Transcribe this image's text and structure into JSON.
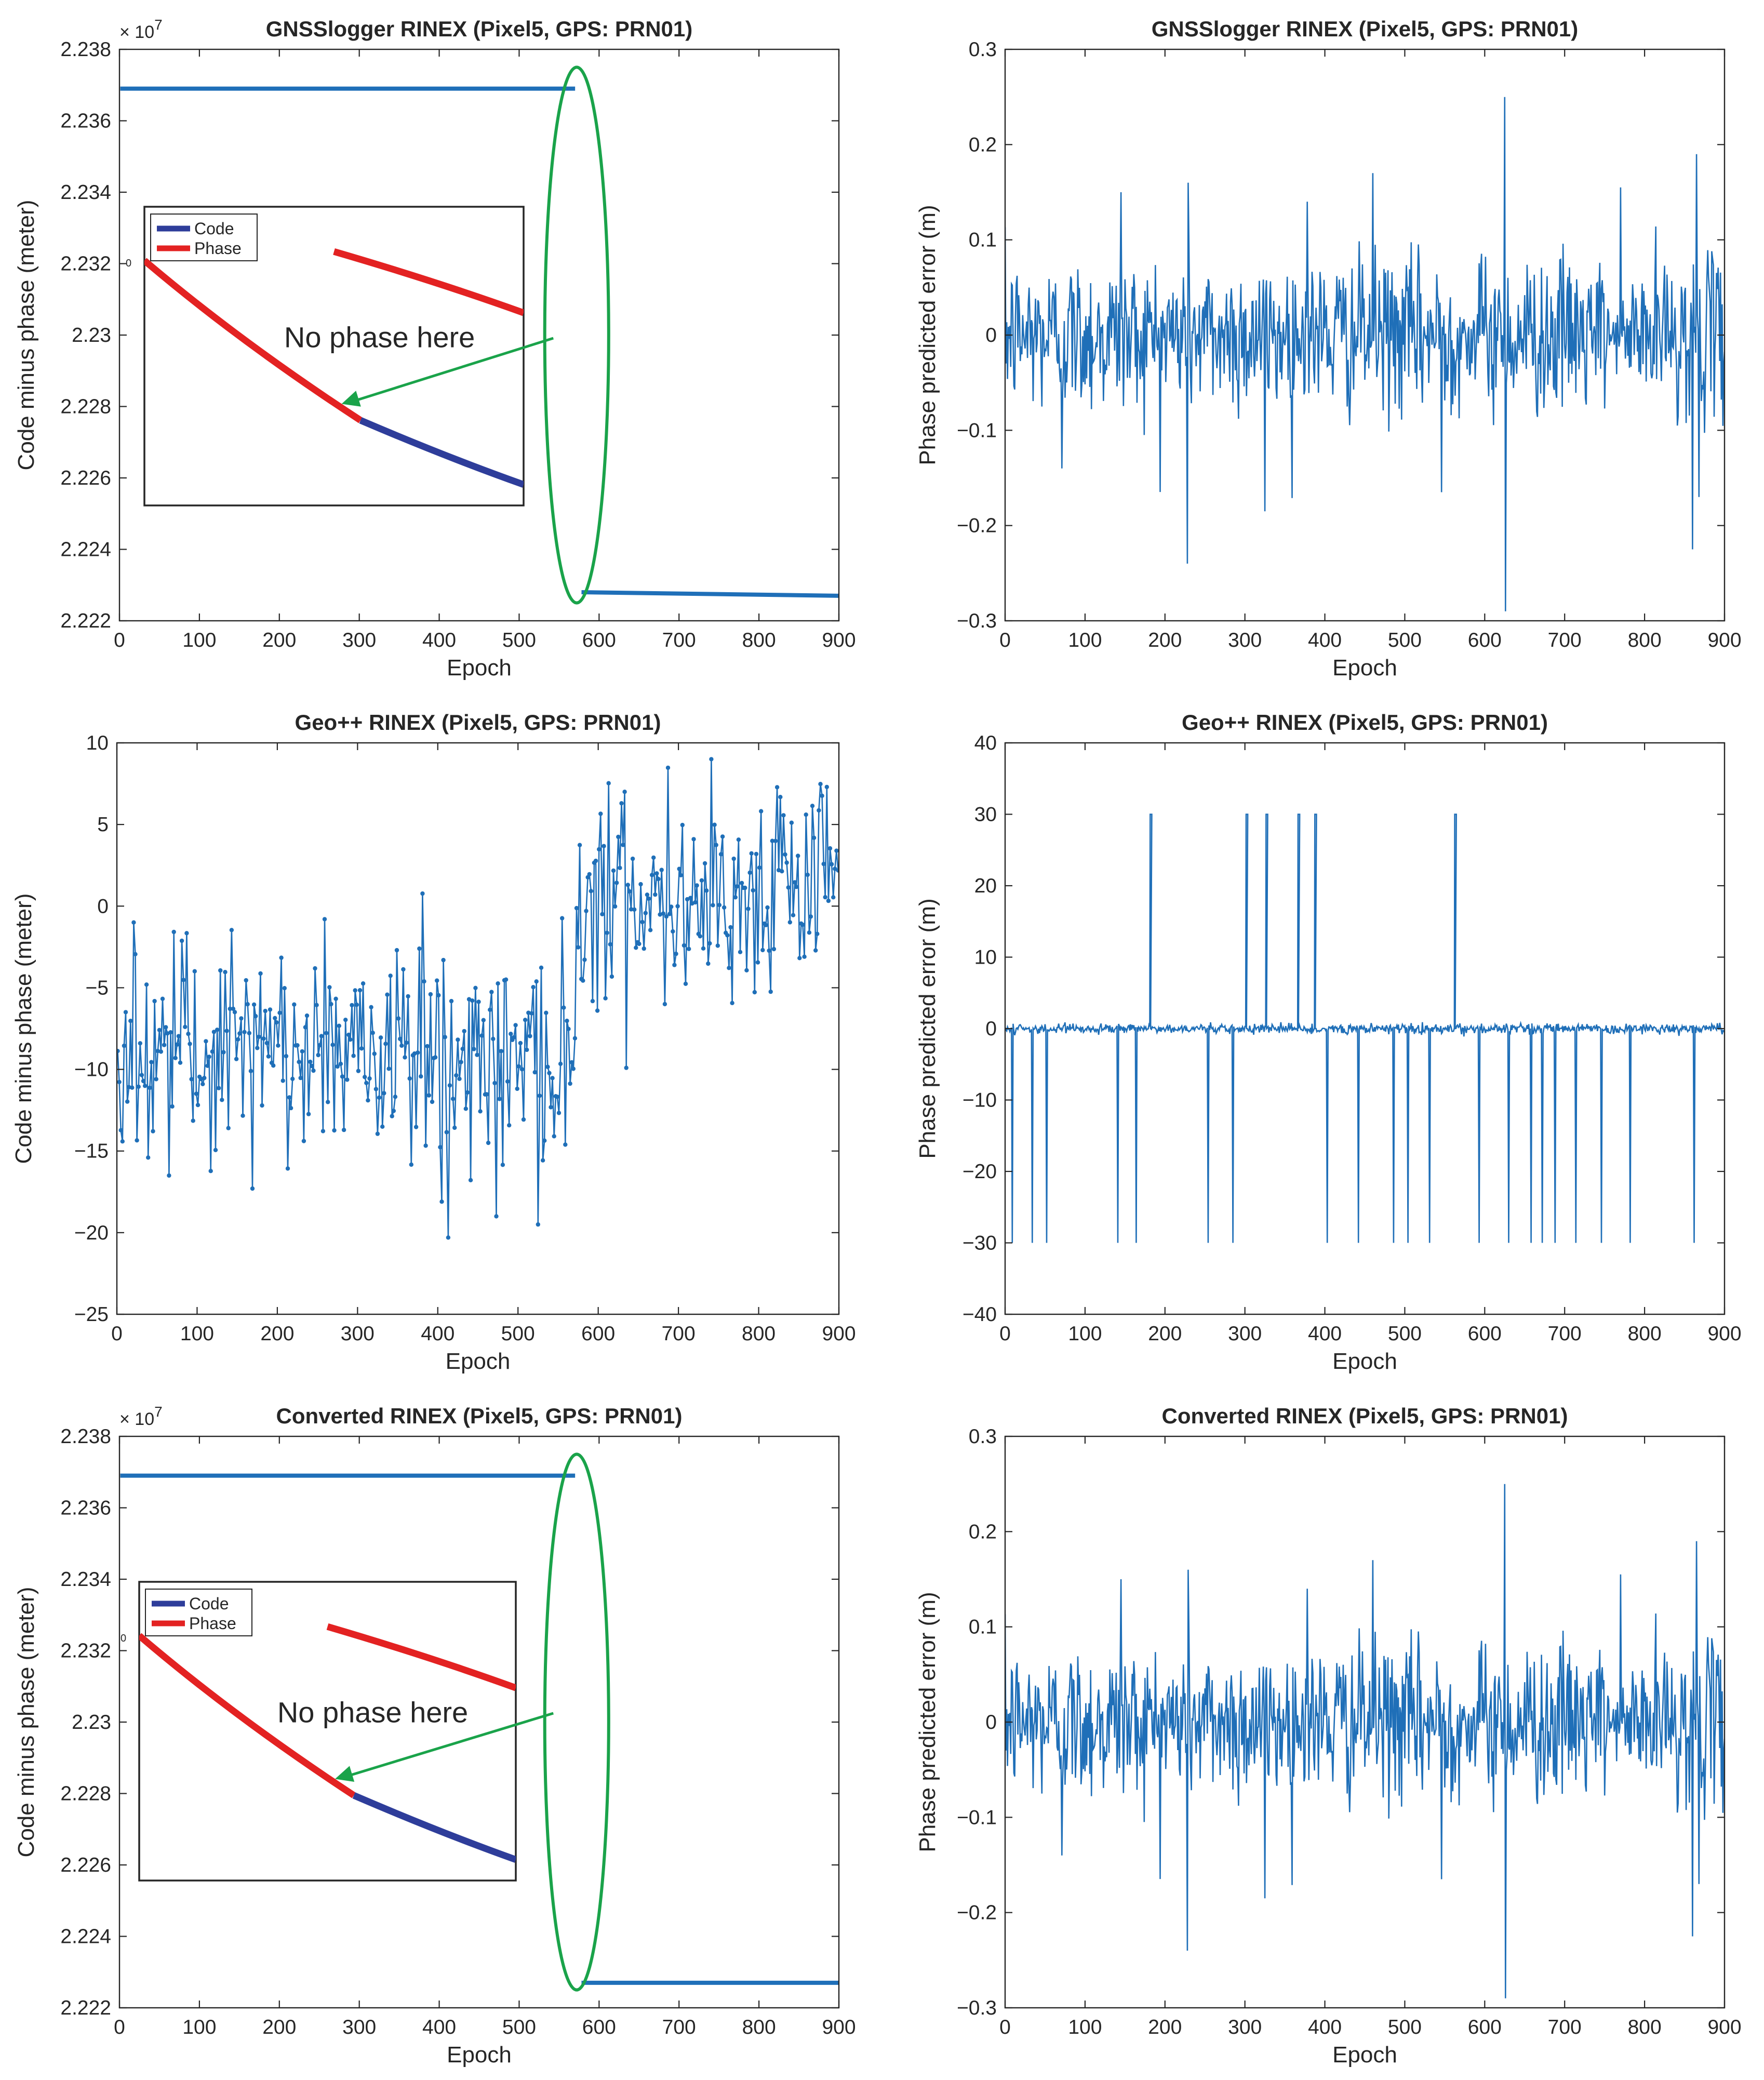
{
  "figure": {
    "panel_count": 6,
    "layout": "3 rows x 2 columns"
  },
  "chart_data": [
    {
      "id": "p1",
      "type": "line",
      "title": "GNSSlogger RINEX (Pixel5, GPS: PRN01)",
      "xlabel": "Epoch",
      "ylabel": "Code minus phase (meter)",
      "xlim": [
        0,
        900
      ],
      "ylim": [
        2.222,
        2.238
      ],
      "xticks": [
        0,
        100,
        200,
        300,
        400,
        500,
        600,
        700,
        800,
        900
      ],
      "yticks": [
        2.222,
        2.224,
        2.226,
        2.228,
        2.23,
        2.232,
        2.234,
        2.236,
        2.238
      ],
      "ytick_labels": [
        "2.222",
        "2.224",
        "2.226",
        "2.228",
        "2.23",
        "2.232",
        "2.234",
        "2.236",
        "2.238"
      ],
      "exponent_label": "× 10",
      "exponent_power": "7",
      "series": [
        {
          "name": "Code minus phase (segment 1)",
          "color": "#1f6fb8",
          "x": [
            1,
            570
          ],
          "y": [
            2.2369,
            2.2369
          ]
        },
        {
          "name": "Code minus phase (segment 2)",
          "color": "#1f6fb8",
          "x": [
            578,
            900
          ],
          "y": [
            2.2228,
            2.2227
          ]
        }
      ],
      "highlight": {
        "shape": "ellipse",
        "color": "#1aa34a",
        "center_x": 572,
        "center_y": 2.23,
        "semi_x": 40,
        "semi_y": 0.0075
      },
      "inset": {
        "legend": [
          {
            "label": "Code",
            "color": "#2e3d9a"
          },
          {
            "label": "Phase",
            "color": "#e32222"
          }
        ],
        "marker_label": "0",
        "annotation": "No phase here",
        "annotation_color": "#1aa34a"
      }
    },
    {
      "id": "p2",
      "type": "line",
      "title": "GNSSlogger RINEX (Pixel5, GPS: PRN01)",
      "xlabel": "Epoch",
      "ylabel": "Phase predicted error (m)",
      "xlim": [
        0,
        900
      ],
      "ylim": [
        -0.3,
        0.3
      ],
      "xticks": [
        0,
        100,
        200,
        300,
        400,
        500,
        600,
        700,
        800,
        900
      ],
      "yticks": [
        -0.3,
        -0.2,
        -0.1,
        0,
        0.1,
        0.2,
        0.3
      ],
      "ytick_labels": [
        "−0.3",
        "−0.2",
        "−0.1",
        "0",
        "0.1",
        "0.2",
        "0.3"
      ],
      "series": [
        {
          "name": "Phase predicted error",
          "color": "#1f6fb8",
          "noise_amp": 0.048,
          "quiet_range": [
            570,
            580
          ],
          "quiet2_range": [
            755,
            780
          ]
        }
      ],
      "spikes": [
        {
          "x": 228,
          "y": -0.24
        },
        {
          "x": 625,
          "y": 0.25
        },
        {
          "x": 626,
          "y": -0.29
        },
        {
          "x": 325,
          "y": -0.185
        },
        {
          "x": 865,
          "y": 0.19
        },
        {
          "x": 868,
          "y": -0.17
        },
        {
          "x": 860,
          "y": -0.225
        },
        {
          "x": 71,
          "y": -0.14
        },
        {
          "x": 145,
          "y": 0.15
        },
        {
          "x": 229,
          "y": 0.16
        },
        {
          "x": 460,
          "y": 0.17
        },
        {
          "x": 546,
          "y": -0.165
        },
        {
          "x": 378,
          "y": 0.14
        },
        {
          "x": 770,
          "y": 0.155
        }
      ]
    },
    {
      "id": "p3",
      "type": "line",
      "title": "Geo++ RINEX (Pixel5, GPS: PRN01)",
      "xlabel": "Epoch",
      "ylabel": "Code minus phase (meter)",
      "xlim": [
        0,
        900
      ],
      "ylim": [
        -25,
        10
      ],
      "xticks": [
        0,
        100,
        200,
        300,
        400,
        500,
        600,
        700,
        800,
        900
      ],
      "yticks": [
        -25,
        -20,
        -15,
        -10,
        -5,
        0,
        5,
        10
      ],
      "ytick_labels": [
        "−25",
        "−20",
        "−15",
        "−10",
        "−5",
        "0",
        "5",
        "10"
      ],
      "series": [
        {
          "name": "Code minus phase",
          "color": "#1f6fb8",
          "markers": true,
          "step": 2,
          "level1": -9,
          "level2": 0.8,
          "jump_at": 572,
          "noise_amp": 3.3
        }
      ],
      "spikes": [
        {
          "x": 414,
          "y": -20.3
        },
        {
          "x": 526,
          "y": -19.5
        },
        {
          "x": 742,
          "y": 9.0
        },
        {
          "x": 260,
          "y": -0.8
        },
        {
          "x": 66,
          "y": -16.5
        },
        {
          "x": 170,
          "y": -17.3
        },
        {
          "x": 630,
          "y": 6.3
        },
        {
          "x": 684,
          "y": -6.0
        },
        {
          "x": 885,
          "y": 7.3
        },
        {
          "x": 22,
          "y": -1.0
        },
        {
          "x": 350,
          "y": -2.7
        },
        {
          "x": 474,
          "y": -19.0
        }
      ]
    },
    {
      "id": "p4",
      "type": "line",
      "title": "Geo++ RINEX (Pixel5, GPS: PRN01)",
      "xlabel": "Epoch",
      "ylabel": "Phase predicted error (m)",
      "xlim": [
        0,
        900
      ],
      "ylim": [
        -40,
        40
      ],
      "xticks": [
        0,
        100,
        200,
        300,
        400,
        500,
        600,
        700,
        800,
        900
      ],
      "yticks": [
        -40,
        -30,
        -20,
        -10,
        0,
        10,
        20,
        30,
        40
      ],
      "ytick_labels": [
        "−40",
        "−30",
        "−20",
        "−10",
        "0",
        "10",
        "20",
        "30",
        "40"
      ],
      "series": [
        {
          "name": "Phase predicted error",
          "color": "#1f6fb8",
          "noise_amp": 0.35
        }
      ],
      "positive_spikes": [
        182,
        302,
        327,
        367,
        388,
        563
      ],
      "negative_spikes": [
        9,
        34,
        52,
        141,
        164,
        254,
        285,
        403,
        442,
        486,
        504,
        531,
        593,
        630,
        658,
        672,
        688,
        714,
        746,
        782,
        862
      ],
      "spike_height": 30
    },
    {
      "id": "p5",
      "type": "line",
      "title": "Converted RINEX (Pixel5, GPS: PRN01)",
      "xlabel": "Epoch",
      "ylabel": "Code minus phase (meter)",
      "xlim": [
        0,
        900
      ],
      "ylim": [
        2.222,
        2.238
      ],
      "xticks": [
        0,
        100,
        200,
        300,
        400,
        500,
        600,
        700,
        800,
        900
      ],
      "yticks": [
        2.222,
        2.224,
        2.226,
        2.228,
        2.23,
        2.232,
        2.234,
        2.236,
        2.238
      ],
      "ytick_labels": [
        "2.222",
        "2.224",
        "2.226",
        "2.228",
        "2.23",
        "2.232",
        "2.234",
        "2.236",
        "2.238"
      ],
      "exponent_label": "× 10",
      "exponent_power": "7",
      "series": [
        {
          "name": "Code minus phase (segment 1)",
          "color": "#1f6fb8",
          "x": [
            1,
            570
          ],
          "y": [
            2.2369,
            2.2369
          ]
        },
        {
          "name": "Code minus phase (segment 2)",
          "color": "#1f6fb8",
          "x": [
            578,
            900
          ],
          "y": [
            2.2227,
            2.2227
          ]
        }
      ],
      "highlight": {
        "shape": "ellipse",
        "color": "#1aa34a",
        "center_x": 572,
        "center_y": 2.23,
        "semi_x": 40,
        "semi_y": 0.0075
      },
      "inset": {
        "legend": [
          {
            "label": "Code",
            "color": "#2e3d9a"
          },
          {
            "label": "Phase",
            "color": "#e32222"
          }
        ],
        "marker_label": "0",
        "annotation": "No phase here",
        "annotation_color": "#1aa34a"
      }
    },
    {
      "id": "p6",
      "type": "line",
      "title": "Converted RINEX (Pixel5, GPS: PRN01)",
      "xlabel": "Epoch",
      "ylabel": "Phase predicted error (m)",
      "xlim": [
        0,
        900
      ],
      "ylim": [
        -0.3,
        0.3
      ],
      "xticks": [
        0,
        100,
        200,
        300,
        400,
        500,
        600,
        700,
        800,
        900
      ],
      "yticks": [
        -0.3,
        -0.2,
        -0.1,
        0,
        0.1,
        0.2,
        0.3
      ],
      "ytick_labels": [
        "−0.3",
        "−0.2",
        "−0.1",
        "0",
        "0.1",
        "0.2",
        "0.3"
      ],
      "series": [
        {
          "name": "Phase predicted error",
          "color": "#1f6fb8",
          "noise_amp": 0.048,
          "quiet_range": [
            570,
            580
          ],
          "quiet2_range": [
            755,
            780
          ]
        }
      ],
      "spikes": [
        {
          "x": 228,
          "y": -0.24
        },
        {
          "x": 625,
          "y": 0.25
        },
        {
          "x": 626,
          "y": -0.29
        },
        {
          "x": 325,
          "y": -0.185
        },
        {
          "x": 865,
          "y": 0.19
        },
        {
          "x": 868,
          "y": -0.17
        },
        {
          "x": 860,
          "y": -0.225
        },
        {
          "x": 71,
          "y": -0.14
        },
        {
          "x": 145,
          "y": 0.15
        },
        {
          "x": 229,
          "y": 0.16
        },
        {
          "x": 460,
          "y": 0.17
        },
        {
          "x": 546,
          "y": -0.165
        },
        {
          "x": 378,
          "y": 0.14
        },
        {
          "x": 770,
          "y": 0.155
        }
      ]
    }
  ]
}
